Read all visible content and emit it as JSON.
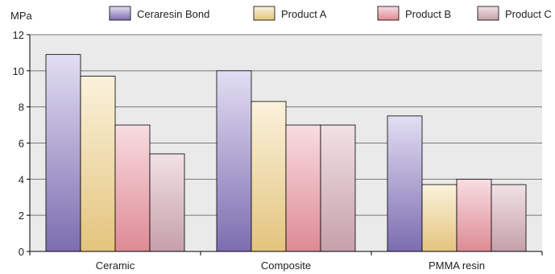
{
  "chart_data": {
    "type": "bar",
    "ylabel": "MPa",
    "ylim": [
      0,
      12
    ],
    "yticks": [
      0,
      2,
      4,
      6,
      8,
      10,
      12
    ],
    "grid": true,
    "legend_position": "top",
    "categories": [
      "Ceramic",
      "Composite",
      "PMMA resin"
    ],
    "series": [
      {
        "name": "Ceraresin Bond",
        "values": [
          10.9,
          10.0,
          7.5
        ],
        "color_top": "#e2def2",
        "color_bottom": "#7c6db0"
      },
      {
        "name": "Product A",
        "values": [
          9.7,
          8.3,
          3.7
        ],
        "color_top": "#fbf2dc",
        "color_bottom": "#e3c47c"
      },
      {
        "name": "Product B",
        "values": [
          7.0,
          7.0,
          4.0
        ],
        "color_top": "#f8dde2",
        "color_bottom": "#de8a94"
      },
      {
        "name": "Product C",
        "values": [
          5.4,
          7.0,
          3.7
        ],
        "color_top": "#f1e1e5",
        "color_bottom": "#c6a0a9"
      }
    ]
  }
}
